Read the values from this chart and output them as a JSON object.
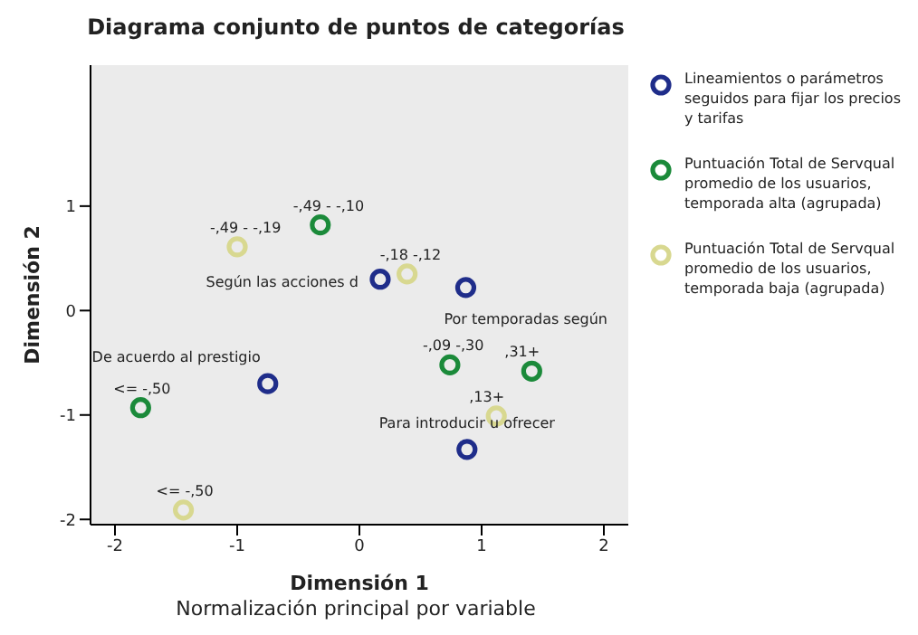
{
  "chart_data": {
    "type": "scatter",
    "title": "Diagrama conjunto de puntos de categorías",
    "subtitle": "Normalización principal por variable",
    "xlabel": "Dimensión 1",
    "ylabel": "Dimensión 2",
    "xlim": [
      -2.2,
      2.2
    ],
    "ylim": [
      -2.05,
      2.35
    ],
    "xticks": [
      -2,
      -1,
      0,
      1,
      2
    ],
    "yticks": [
      -2,
      -1,
      0,
      1
    ],
    "grid": false,
    "legend": "right",
    "marker": "circle",
    "series": [
      {
        "name": "Lineamientos o parámetros seguidos para fijar los precios y tarifas",
        "color": "#1f2d8a",
        "x": [
          0.17,
          0.87,
          -0.75,
          0.88
        ],
        "values": [
          0.3,
          0.22,
          -0.7,
          -1.33
        ],
        "value_labels": [
          "Según las acciones d",
          "Por temporadas según",
          "De acuerdo al prestigio",
          "Para introducir u ofrecer"
        ]
      },
      {
        "name": "Puntuación Total de Servqual promedio de los usuarios, temporada alta (agrupada)",
        "color": "#1b8a3a",
        "x": [
          -0.32,
          0.74,
          1.41,
          -1.79
        ],
        "values": [
          0.82,
          -0.52,
          -0.58,
          -0.93
        ],
        "value_labels": [
          "-,49 - -,10",
          "-,09 -,30",
          ",31+",
          "<= -,50"
        ]
      },
      {
        "name": "Puntuación Total de Servqual promedio de los usuarios, temporada baja (agrupada)",
        "color": "#d8d890",
        "x": [
          -1.0,
          0.39,
          1.12,
          -1.44
        ],
        "values": [
          0.61,
          0.35,
          -1.01,
          -1.91
        ],
        "value_labels": [
          "-,49 - -,19",
          "-,18 -,12",
          ",13+",
          "<= -,50"
        ]
      }
    ]
  }
}
